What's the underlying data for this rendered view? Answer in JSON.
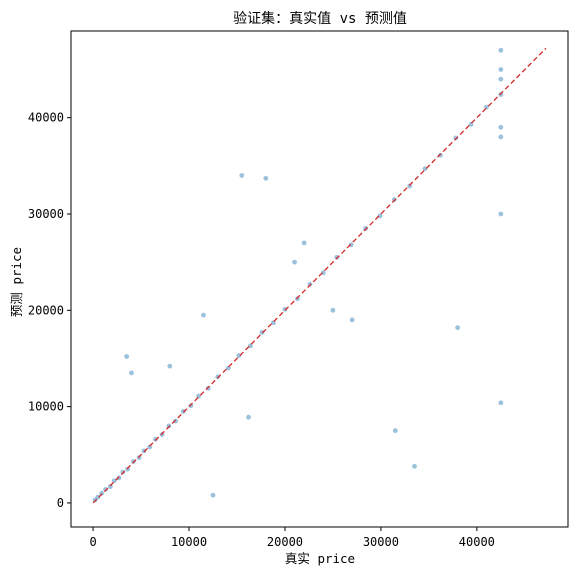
{
  "chart_data": {
    "type": "scatter",
    "title": "验证集：真实值 vs 预测值",
    "xlabel": "真实 price",
    "ylabel": "预测 price",
    "xlim": [
      -2300,
      49500
    ],
    "ylim": [
      -2500,
      49000
    ],
    "x_ticks": [
      0,
      10000,
      20000,
      30000,
      40000
    ],
    "y_ticks": [
      0,
      10000,
      20000,
      30000,
      40000
    ],
    "x_tick_labels": [
      "0",
      "10000",
      "20000",
      "30000",
      "40000"
    ],
    "y_tick_labels": [
      "0",
      "10000",
      "20000",
      "30000",
      "40000"
    ],
    "grid": false,
    "point_color": "#1f77b4",
    "point_alpha": 0.45,
    "reference_line": {
      "from": [
        0,
        0
      ],
      "to": [
        47200,
        47200
      ],
      "color": "#d62728",
      "style": "dashed"
    },
    "series": [
      {
        "points_note_free": true,
        "x": [
          200,
          500,
          900,
          1300,
          1800,
          2200,
          2700,
          3100,
          3600,
          4200,
          4800,
          5300,
          5900,
          6500,
          7200,
          7900,
          8600,
          9400,
          10200,
          11000,
          12000,
          13000,
          14100,
          15200,
          16400,
          17600,
          18800,
          20000,
          21300,
          22600,
          24000,
          25400,
          26900,
          28400,
          29900,
          31400,
          33000,
          34600,
          36200,
          37800,
          39400,
          41000,
          42500,
          42500,
          42500,
          42500,
          42500,
          42500,
          42500,
          15500,
          18000,
          22000,
          25000,
          31500,
          33500,
          38000,
          42500,
          12500,
          16200,
          8000,
          3500,
          4000,
          27000,
          21000,
          11500
        ],
        "y": [
          300,
          600,
          1000,
          1400,
          1700,
          2300,
          2600,
          3200,
          3500,
          4300,
          4700,
          5400,
          5800,
          6600,
          7100,
          8000,
          8500,
          9500,
          10100,
          11100,
          11900,
          13100,
          14000,
          15300,
          16300,
          17700,
          18700,
          20100,
          21200,
          22700,
          23900,
          25500,
          26800,
          28500,
          29800,
          31500,
          32900,
          34700,
          36100,
          37900,
          39300,
          41100,
          42400,
          47000,
          45000,
          44000,
          39000,
          38000,
          30000,
          34000,
          33700,
          27000,
          20000,
          7500,
          3800,
          18200,
          10400,
          800,
          8900,
          14200,
          15200,
          13500,
          19000,
          25000,
          19500
        ]
      }
    ]
  }
}
